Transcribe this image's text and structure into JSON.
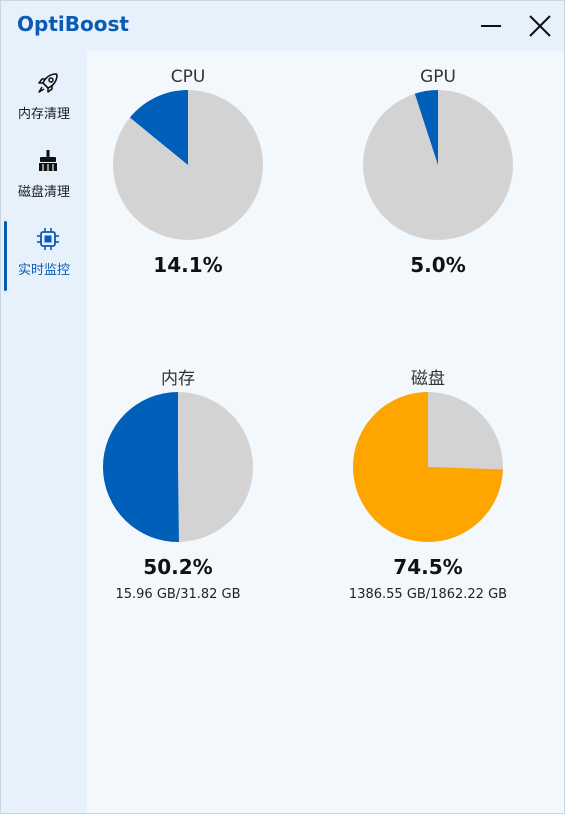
{
  "app": {
    "title": "OptiBoost"
  },
  "window_controls": {
    "minimize_icon": "minimize-icon",
    "close_icon": "close-icon"
  },
  "sidebar": {
    "items": [
      {
        "label": "内存清理",
        "icon": "rocket-icon",
        "active": false
      },
      {
        "label": "磁盘清理",
        "icon": "broom-icon",
        "active": false
      },
      {
        "label": "实时监控",
        "icon": "chip-icon",
        "active": true
      }
    ]
  },
  "colors": {
    "accent": "#0a5bb5",
    "pie_blue": "#005fb8",
    "pie_orange": "#ffa500",
    "pie_gray": "#d3d3d3"
  },
  "metrics": {
    "cpu": {
      "name": "CPU",
      "percent": 14.1,
      "percent_text": "14.1%",
      "color": "#005fb8"
    },
    "gpu": {
      "name": "GPU",
      "percent": 5.0,
      "percent_text": "5.0%",
      "color": "#005fb8"
    },
    "mem": {
      "name": "内存",
      "percent": 50.2,
      "percent_text": "50.2%",
      "detail": "15.96 GB/31.82 GB",
      "color": "#005fb8"
    },
    "disk": {
      "name": "磁盘",
      "percent": 74.5,
      "percent_text": "74.5%",
      "detail": "1386.55 GB/1862.22 GB",
      "color": "#ffa500"
    }
  }
}
